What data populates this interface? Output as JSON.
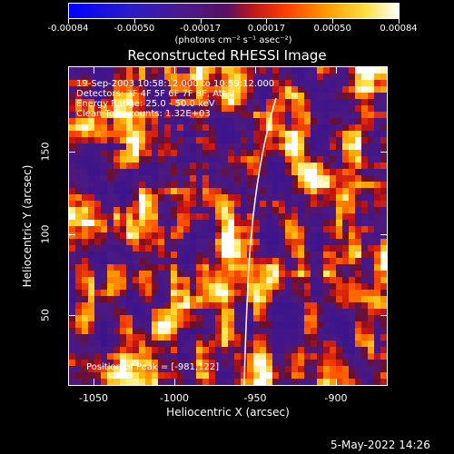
{
  "colorbar": {
    "tick_labels": [
      "-0.00084",
      "-0.00050",
      "-0.00017",
      "0.00017",
      "0.00050",
      "0.00084"
    ],
    "unit_label": "(photons cm⁻² s⁻¹ asec⁻²)"
  },
  "title": "Reconstructed RHESSI Image",
  "info": {
    "time": "19-Sep-2003 10:58:12.000 to 10:59:12.000",
    "detectors": "Detectors: 3F 4F 5F 6F 7F 8F, Att 0",
    "energy": "Energy Range: 25.0 - 50.0 keV",
    "clean": "Clean     Total counts: 1.32E+03",
    "peak": "Position of Peak = [-981,122]"
  },
  "axes": {
    "xlabel": "Heliocentric X (arcsec)",
    "ylabel": "Heliocentric Y (arcsec)",
    "xticks": [
      "-1050",
      "-1000",
      "-950",
      "-900"
    ],
    "yticks": [
      "50",
      "100",
      "150"
    ]
  },
  "footer": {
    "date": "5-May-2022 14:26"
  },
  "chart_data": {
    "type": "heatmap",
    "title": "Reconstructed RHESSI Image",
    "xlabel": "Heliocentric X (arcsec)",
    "ylabel": "Heliocentric Y (arcsec)",
    "xlim": [
      -1065,
      -873
    ],
    "ylim": [
      3,
      195
    ],
    "colorbar_range": [
      -0.00084,
      0.00084
    ],
    "colormap": "blue-purple-red-yellow-white",
    "grid": false
  }
}
